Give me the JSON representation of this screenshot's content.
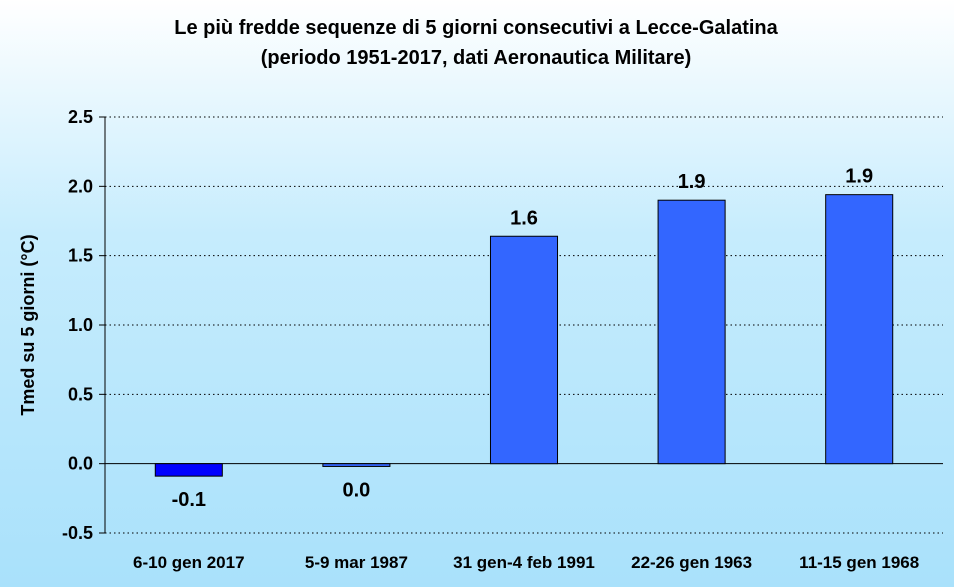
{
  "chart_data": {
    "type": "bar",
    "title_lines": [
      "Le più fredde sequenze di 5 giorni consecutivi a Lecce-Galatina",
      "(periodo 1951-2017, dati Aeronautica Militare)"
    ],
    "ylabel": "Tmed su 5 giorni (°C)",
    "xlabel": "",
    "categories": [
      "6-10 gen 2017",
      "5-9 mar 1987",
      "31 gen-4 feb 1991",
      "22-26 gen 1963",
      "11-15 gen 1968"
    ],
    "values": [
      -0.09,
      -0.02,
      1.64,
      1.9,
      1.94
    ],
    "data_labels": [
      "-0.1",
      "0.0",
      "1.6",
      "1.9",
      "1.9"
    ],
    "ylim": [
      -0.5,
      2.5
    ],
    "yticks": [
      -0.5,
      0.0,
      0.5,
      1.0,
      1.5,
      2.0,
      2.5
    ],
    "ytick_labels": [
      "-0.5",
      "0.0",
      "0.5",
      "1.0",
      "1.5",
      "2.0",
      "2.5"
    ],
    "grid": true,
    "legend": "none",
    "colors": {
      "highlight_bar": "#0000ff",
      "bar": "#3366ff",
      "grid": "#000000"
    }
  }
}
